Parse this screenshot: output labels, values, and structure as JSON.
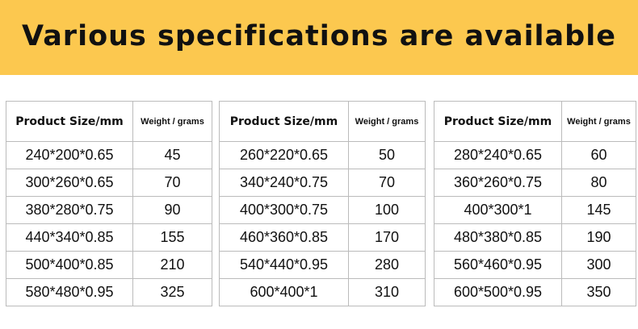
{
  "header": {
    "title": "Various specifications are available"
  },
  "tables": [
    {
      "columns": [
        "Product Size/mm",
        "Weight / grams"
      ],
      "rows": [
        [
          "240*200*0.65",
          45
        ],
        [
          "300*260*0.65",
          70
        ],
        [
          "380*280*0.75",
          90
        ],
        [
          "440*340*0.85",
          155
        ],
        [
          "500*400*0.85",
          210
        ],
        [
          "580*480*0.95",
          325
        ]
      ]
    },
    {
      "columns": [
        "Product Size/mm",
        "Weight / grams"
      ],
      "rows": [
        [
          "260*220*0.65",
          50
        ],
        [
          "340*240*0.75",
          70
        ],
        [
          "400*300*0.75",
          100
        ],
        [
          "460*360*0.85",
          170
        ],
        [
          "540*440*0.95",
          280
        ],
        [
          "600*400*1",
          310
        ]
      ]
    },
    {
      "columns": [
        "Product Size/mm",
        "Weight / grams"
      ],
      "rows": [
        [
          "280*240*0.65",
          60
        ],
        [
          "360*260*0.75",
          80
        ],
        [
          "400*300*1",
          145
        ],
        [
          "480*380*0.85",
          190
        ],
        [
          "560*460*0.95",
          300
        ],
        [
          "600*500*0.95",
          350
        ]
      ]
    }
  ]
}
